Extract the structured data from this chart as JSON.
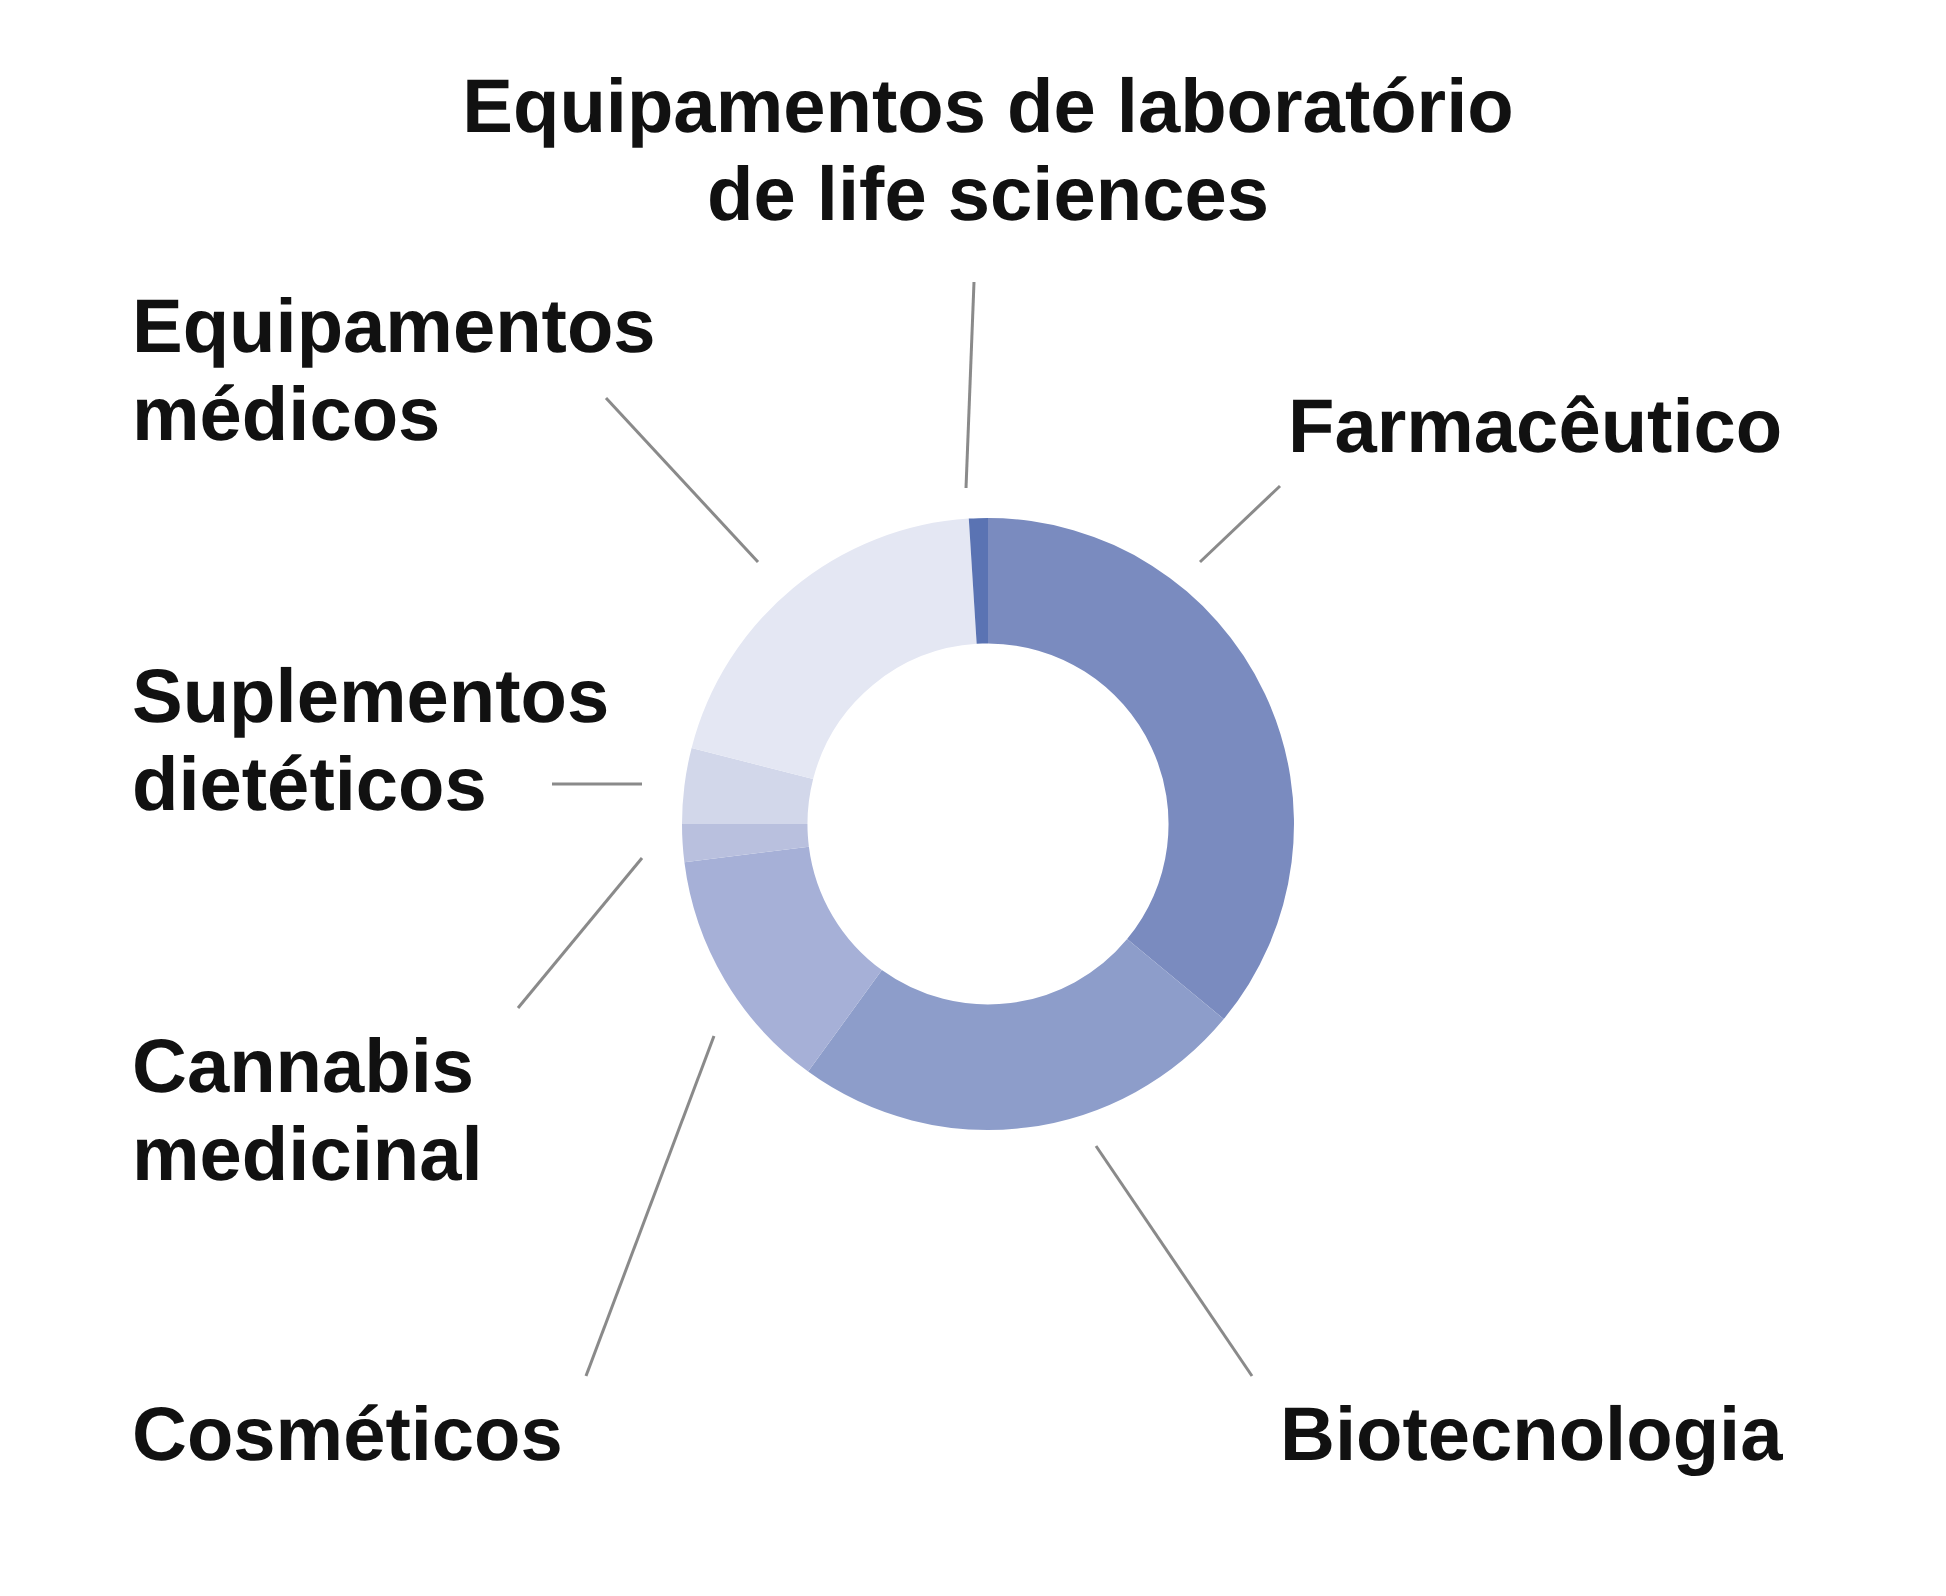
{
  "chart_data": {
    "type": "donut",
    "categories": [
      "Farmacêutico",
      "Biotecnologia",
      "Cosméticos",
      "Cannabis medicinal",
      "Suplementos dietéticos",
      "Equipamentos médicos",
      "Equipamentos de laboratório de life sciences"
    ],
    "values": [
      36,
      24,
      13,
      2,
      4,
      20,
      1
    ],
    "colors": [
      "#7a8bbf",
      "#8d9dca",
      "#a6b0d7",
      "#b9c0de",
      "#d2d7ea",
      "#e4e7f3",
      "#5a73b3"
    ],
    "legend": false
  }
}
